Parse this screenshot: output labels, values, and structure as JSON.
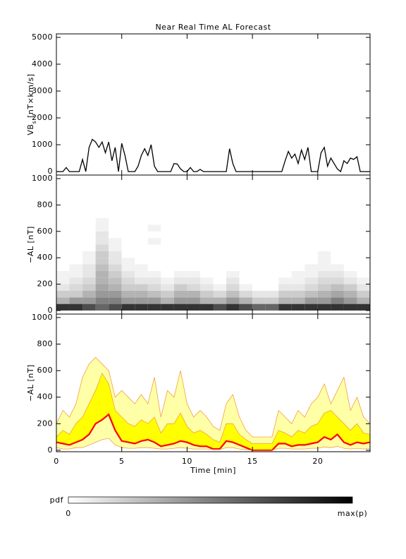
{
  "chart_data": [
    {
      "type": "line",
      "title": "Near Real Time AL Forecast",
      "ylabel": {
        "main": "VB",
        "sub": "s",
        "unit": "[nT×km/s]"
      },
      "x": [
        0,
        0.25,
        0.5,
        0.75,
        1,
        1.25,
        1.5,
        1.75,
        2,
        2.25,
        2.5,
        2.75,
        3,
        3.25,
        3.5,
        3.75,
        4,
        4.25,
        4.5,
        4.75,
        5,
        5.25,
        5.5,
        5.75,
        6,
        6.25,
        6.5,
        6.75,
        7,
        7.25,
        7.5,
        7.75,
        8,
        8.25,
        8.5,
        8.75,
        9,
        9.25,
        9.5,
        9.75,
        10,
        10.25,
        10.5,
        10.75,
        11,
        11.25,
        11.5,
        11.75,
        12,
        12.25,
        12.5,
        12.75,
        13,
        13.25,
        13.5,
        13.75,
        14,
        14.25,
        14.5,
        14.75,
        15,
        15.25,
        15.5,
        15.75,
        16,
        16.25,
        16.5,
        16.75,
        17,
        17.25,
        17.5,
        17.75,
        18,
        18.25,
        18.5,
        18.75,
        19,
        19.25,
        19.5,
        19.75,
        20,
        20.25,
        20.5,
        20.75,
        21,
        21.25,
        21.5,
        21.75,
        22,
        22.25,
        22.5,
        22.75,
        23,
        23.25,
        23.5,
        23.75,
        24
      ],
      "values": [
        0,
        0,
        0,
        150,
        0,
        0,
        0,
        0,
        450,
        0,
        900,
        1200,
        1100,
        900,
        1100,
        700,
        1100,
        400,
        900,
        0,
        1050,
        600,
        0,
        0,
        0,
        200,
        600,
        850,
        600,
        1000,
        200,
        0,
        0,
        0,
        0,
        0,
        300,
        280,
        100,
        0,
        0,
        150,
        0,
        0,
        80,
        0,
        0,
        0,
        0,
        0,
        0,
        0,
        0,
        850,
        300,
        0,
        0,
        0,
        0,
        0,
        0,
        0,
        0,
        0,
        0,
        0,
        0,
        0,
        0,
        0,
        400,
        750,
        500,
        650,
        300,
        800,
        450,
        900,
        0,
        0,
        0,
        700,
        900,
        200,
        500,
        300,
        100,
        0,
        400,
        300,
        500,
        450,
        550,
        0,
        0,
        0,
        0
      ],
      "color": "#000000",
      "xlim": [
        0,
        24
      ],
      "xticks": [
        0,
        5,
        10,
        15,
        20
      ],
      "ylim": [
        -130,
        5130
      ],
      "yticks": [
        0,
        1000,
        2000,
        3000,
        4000,
        5000
      ]
    },
    {
      "type": "heatmap",
      "ylabel": {
        "main": "−AL [nT]"
      },
      "x": [
        0,
        1,
        2,
        3,
        4,
        5,
        6,
        7,
        8,
        9,
        10,
        11,
        12,
        13,
        14,
        15,
        16,
        17,
        18,
        19,
        20,
        21,
        22,
        23,
        24
      ],
      "bins": [
        0,
        50,
        100,
        150,
        200,
        250,
        300,
        350,
        400,
        450,
        500,
        550,
        600,
        650,
        700
      ],
      "z": [
        [
          0.8,
          0.3,
          0.2,
          0.1,
          0.05,
          0.05,
          0,
          0,
          0,
          0,
          0,
          0,
          0,
          0
        ],
        [
          0.8,
          0.4,
          0.2,
          0.15,
          0.1,
          0.05,
          0.05,
          0,
          0,
          0,
          0,
          0,
          0,
          0
        ],
        [
          0.7,
          0.4,
          0.3,
          0.2,
          0.15,
          0.1,
          0.1,
          0.05,
          0.05,
          0,
          0,
          0,
          0,
          0
        ],
        [
          0.6,
          0.5,
          0.4,
          0.35,
          0.3,
          0.3,
          0.25,
          0.2,
          0.2,
          0.15,
          0.1,
          0.1,
          0.05,
          0.05
        ],
        [
          0.7,
          0.5,
          0.4,
          0.3,
          0.25,
          0.2,
          0.15,
          0.1,
          0.1,
          0.05,
          0.05,
          0,
          0,
          0
        ],
        [
          0.8,
          0.4,
          0.3,
          0.2,
          0.15,
          0.1,
          0.05,
          0.05,
          0,
          0,
          0,
          0,
          0,
          0
        ],
        [
          0.8,
          0.4,
          0.3,
          0.2,
          0.1,
          0.05,
          0.05,
          0,
          0,
          0,
          0,
          0,
          0,
          0
        ],
        [
          0.8,
          0.4,
          0.25,
          0.15,
          0.1,
          0.05,
          0,
          0,
          0,
          0,
          0.05,
          0,
          0.05,
          0
        ],
        [
          0.8,
          0.3,
          0.2,
          0.1,
          0.05,
          0,
          0,
          0,
          0,
          0,
          0,
          0,
          0,
          0
        ],
        [
          0.8,
          0.4,
          0.3,
          0.2,
          0.1,
          0.05,
          0,
          0,
          0,
          0,
          0,
          0,
          0,
          0
        ],
        [
          0.8,
          0.4,
          0.3,
          0.15,
          0.1,
          0.05,
          0,
          0,
          0,
          0,
          0,
          0,
          0,
          0
        ],
        [
          0.8,
          0.3,
          0.2,
          0.1,
          0.05,
          0,
          0,
          0,
          0,
          0,
          0,
          0,
          0,
          0
        ],
        [
          0.7,
          0.3,
          0.15,
          0.05,
          0,
          0,
          0,
          0,
          0,
          0,
          0,
          0,
          0,
          0
        ],
        [
          0.8,
          0.4,
          0.25,
          0.15,
          0.1,
          0.05,
          0,
          0,
          0,
          0,
          0,
          0,
          0,
          0
        ],
        [
          0.7,
          0.3,
          0.15,
          0.05,
          0,
          0,
          0,
          0,
          0,
          0,
          0,
          0,
          0,
          0
        ],
        [
          0.6,
          0.2,
          0.1,
          0,
          0,
          0,
          0,
          0,
          0,
          0,
          0,
          0,
          0,
          0
        ],
        [
          0.6,
          0.2,
          0.1,
          0,
          0,
          0,
          0,
          0,
          0,
          0,
          0,
          0,
          0,
          0
        ],
        [
          0.8,
          0.3,
          0.2,
          0.1,
          0.05,
          0,
          0,
          0,
          0,
          0,
          0,
          0,
          0,
          0
        ],
        [
          0.8,
          0.3,
          0.2,
          0.1,
          0.05,
          0.05,
          0,
          0,
          0,
          0,
          0,
          0,
          0,
          0
        ],
        [
          0.8,
          0.4,
          0.25,
          0.15,
          0.1,
          0.05,
          0.05,
          0,
          0,
          0,
          0,
          0,
          0,
          0
        ],
        [
          0.8,
          0.4,
          0.3,
          0.2,
          0.15,
          0.1,
          0.05,
          0.05,
          0.05,
          0,
          0,
          0,
          0,
          0
        ],
        [
          0.8,
          0.5,
          0.35,
          0.25,
          0.15,
          0.1,
          0.05,
          0,
          0,
          0,
          0,
          0,
          0,
          0
        ],
        [
          0.8,
          0.4,
          0.3,
          0.2,
          0.1,
          0.05,
          0,
          0,
          0,
          0,
          0,
          0,
          0,
          0
        ],
        [
          0.8,
          0.3,
          0.2,
          0.1,
          0.05,
          0,
          0,
          0,
          0,
          0,
          0,
          0,
          0,
          0
        ]
      ],
      "xlim": [
        0,
        24
      ],
      "xticks": [
        0,
        5,
        10,
        15,
        20
      ],
      "ylim": [
        -27,
        1027
      ],
      "yticks": [
        0,
        200,
        400,
        600,
        800,
        1000
      ],
      "colorbar": {
        "label": "pdf",
        "min_label": "0",
        "max_label": "max(p)"
      }
    },
    {
      "type": "band",
      "ylabel": {
        "main": "−AL [nT]"
      },
      "xlabel": "Time [min]",
      "xtick_labels": true,
      "x": [
        0,
        0.5,
        1,
        1.5,
        2,
        2.5,
        3,
        3.5,
        4,
        4.5,
        5,
        5.5,
        6,
        6.5,
        7,
        7.5,
        8,
        8.5,
        9,
        9.5,
        10,
        10.5,
        11,
        11.5,
        12,
        12.5,
        13,
        13.5,
        14,
        14.5,
        15,
        15.5,
        16,
        16.5,
        17,
        17.5,
        18,
        18.5,
        19,
        19.5,
        20,
        20.5,
        21,
        21.5,
        22,
        22.5,
        23,
        23.5,
        24
      ],
      "series": [
        {
          "color": "#f0a040",
          "fill": "#ffffa8",
          "values": [
            200,
            300,
            250,
            350,
            550,
            650,
            700,
            650,
            600,
            400,
            450,
            400,
            350,
            420,
            350,
            550,
            250,
            450,
            400,
            600,
            350,
            250,
            300,
            250,
            180,
            150,
            350,
            420,
            250,
            150,
            100,
            100,
            100,
            100,
            300,
            250,
            200,
            300,
            250,
            350,
            400,
            500,
            350,
            450,
            550,
            300,
            400,
            250,
            200
          ]
        },
        {
          "color": "#f0a040",
          "fill": "#ffff00",
          "values": [
            100,
            150,
            120,
            200,
            250,
            350,
            450,
            580,
            500,
            300,
            250,
            200,
            180,
            230,
            200,
            250,
            130,
            200,
            200,
            280,
            180,
            130,
            150,
            120,
            80,
            60,
            200,
            200,
            120,
            80,
            50,
            50,
            50,
            50,
            150,
            130,
            100,
            150,
            130,
            180,
            200,
            280,
            300,
            250,
            200,
            150,
            200,
            130,
            120
          ]
        },
        {
          "color": "#ff0000",
          "values": [
            60,
            50,
            40,
            60,
            80,
            120,
            200,
            230,
            270,
            150,
            70,
            60,
            50,
            70,
            80,
            60,
            30,
            40,
            50,
            70,
            60,
            40,
            30,
            30,
            10,
            10,
            70,
            60,
            40,
            20,
            0,
            0,
            0,
            0,
            50,
            50,
            30,
            40,
            40,
            50,
            60,
            100,
            80,
            120,
            60,
            40,
            60,
            50,
            60
          ]
        },
        {
          "color": "#f0a040",
          "values": [
            20,
            10,
            10,
            20,
            20,
            40,
            60,
            80,
            90,
            40,
            20,
            15,
            15,
            20,
            20,
            15,
            10,
            10,
            15,
            20,
            15,
            10,
            10,
            10,
            5,
            5,
            20,
            20,
            10,
            5,
            0,
            0,
            0,
            0,
            15,
            15,
            10,
            10,
            10,
            15,
            15,
            25,
            20,
            30,
            15,
            10,
            15,
            10,
            15
          ]
        }
      ],
      "xlim": [
        0,
        24
      ],
      "xticks": [
        0,
        5,
        10,
        15,
        20
      ],
      "ylim": [
        -11,
        1026
      ],
      "yticks": [
        0,
        200,
        400,
        600,
        800,
        1000
      ]
    }
  ]
}
